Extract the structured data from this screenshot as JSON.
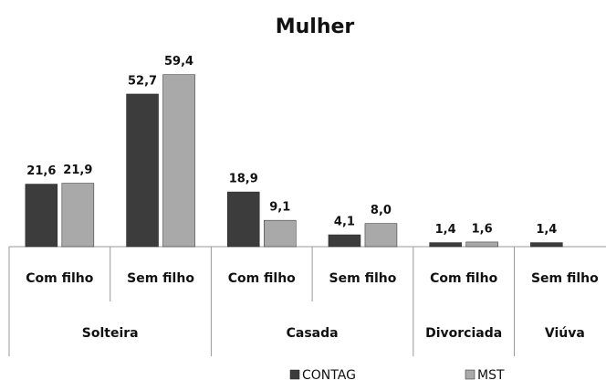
{
  "chart_data": {
    "type": "bar",
    "title": "Mulher",
    "categories": [
      "Com filho",
      "Sem filho",
      "Com filho",
      "Sem filho",
      "Com filho",
      "Sem filho"
    ],
    "groups": [
      {
        "name": "Solteira",
        "size": 2
      },
      {
        "name": "Casada",
        "size": 2
      },
      {
        "name": "Divorciada",
        "size": 1
      },
      {
        "name": "Viúva",
        "size": 1
      }
    ],
    "series": [
      {
        "name": "CONTAG",
        "color": "#3c3c3c",
        "values": [
          21.6,
          52.7,
          18.9,
          4.1,
          1.4,
          1.4
        ],
        "value_labels": [
          "21,6",
          "52,7",
          "18,9",
          "4,1",
          "1,4",
          "1,4"
        ]
      },
      {
        "name": "MST",
        "color": "#a9a9a9",
        "values": [
          21.9,
          59.4,
          9.1,
          8.0,
          1.6,
          null
        ],
        "value_labels": [
          "21,9",
          "59,4",
          "9,1",
          "8,0",
          "1,6",
          null
        ]
      }
    ],
    "legend": "bottom"
  }
}
